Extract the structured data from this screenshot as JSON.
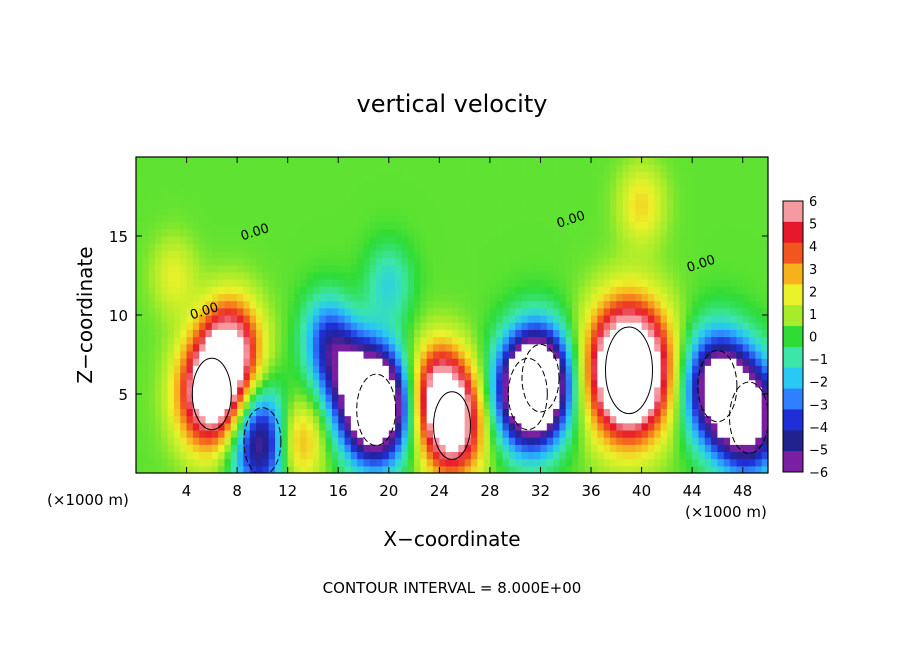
{
  "chart_data": {
    "type": "heatmap",
    "title": "vertical velocity",
    "xlabel": "X−coordinate",
    "ylabel": "Z−coordinate",
    "x_unit_left": "(×1000 m)",
    "x_unit_right": "(×1000 m)",
    "xlim": [
      0,
      50
    ],
    "ylim": [
      0,
      20
    ],
    "x_ticks": [
      4,
      8,
      12,
      16,
      20,
      24,
      28,
      32,
      36,
      40,
      44,
      48
    ],
    "y_ticks": [
      5,
      10,
      15
    ],
    "contour_label": "0.00",
    "footer": "CONTOUR INTERVAL = 8.000E+00",
    "colorbar": {
      "ticks": [
        "6",
        "5",
        "4",
        "3",
        "2",
        "1",
        "0",
        "−1",
        "−2",
        "−3",
        "−4",
        "−5",
        "−6"
      ],
      "range": [
        -6,
        6
      ]
    },
    "features": [
      {
        "x": 6,
        "z": 5,
        "value": 8
      },
      {
        "x": 7.5,
        "z": 8,
        "value": 6
      },
      {
        "x": 10,
        "z": 2,
        "value": -7
      },
      {
        "x": 12.5,
        "z": 2,
        "value": 4
      },
      {
        "x": 16,
        "z": 7,
        "value": -4
      },
      {
        "x": 18.5,
        "z": 5,
        "value": -6
      },
      {
        "x": 19,
        "z": 4,
        "value": -8
      },
      {
        "x": 25,
        "z": 3,
        "value": 7
      },
      {
        "x": 24,
        "z": 5.5,
        "value": 5
      },
      {
        "x": 31,
        "z": 5,
        "value": -8
      },
      {
        "x": 32,
        "z": 6,
        "value": -7
      },
      {
        "x": 39,
        "z": 6.5,
        "value": 12
      },
      {
        "x": 46,
        "z": 5.5,
        "value": -8
      },
      {
        "x": 48.5,
        "z": 3.5,
        "value": -8
      },
      {
        "x": 3,
        "z": 12.5,
        "value": 1.5
      },
      {
        "x": 40,
        "z": 17,
        "value": 2
      },
      {
        "x": 20,
        "z": 12,
        "value": -2
      },
      {
        "x": 15,
        "z": 9,
        "value": -2.5
      }
    ]
  }
}
